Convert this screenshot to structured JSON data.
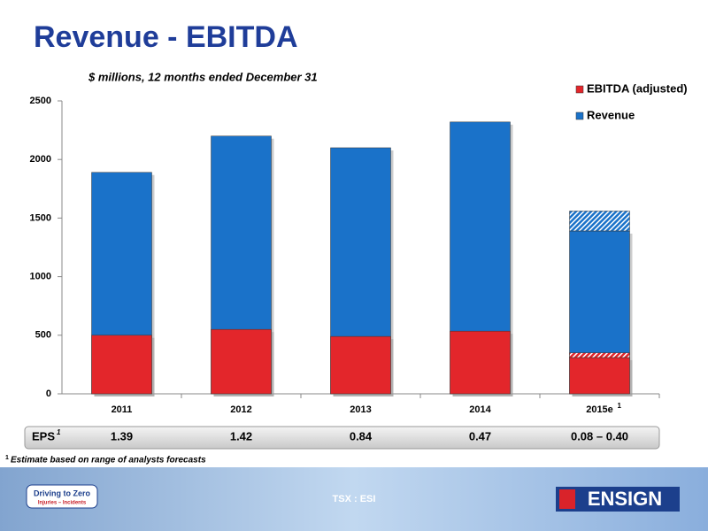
{
  "chart_data": {
    "type": "bar",
    "title": "Revenue - EBITDA",
    "subtitle": "$ millions, 12 months ended December 31",
    "categories": [
      "2011",
      "2012",
      "2013",
      "2014",
      "2015e"
    ],
    "category_markers": [
      null,
      null,
      null,
      null,
      "1"
    ],
    "series": [
      {
        "name": "EBITDA (adjusted)",
        "color": "#e3262b",
        "values": [
          500,
          550,
          490,
          535,
          310
        ],
        "values_high": [
          null,
          null,
          null,
          null,
          350
        ]
      },
      {
        "name": "Revenue",
        "color": "#1a72c9",
        "values": [
          1890,
          2200,
          2100,
          2320,
          1390
        ],
        "values_high": [
          null,
          null,
          null,
          null,
          1560
        ]
      }
    ],
    "ylim": [
      0,
      2500
    ],
    "yticks": [
      0,
      500,
      1000,
      1500,
      2000,
      2500
    ],
    "legend": "top-right",
    "eps_row": {
      "label": "EPS",
      "marker": "1",
      "values": [
        "1.39",
        "1.42",
        "0.84",
        "0.47",
        "0.08 – 0.40"
      ]
    },
    "footnote": {
      "marker": "1",
      "text": "Estimate based on range of analysts forecasts"
    }
  },
  "footer": {
    "left_logo": "Driving to Zero",
    "left_logo_sub": "Injuries – Incidents",
    "ticker": "TSX : ESI",
    "right_logo": "ENSIGN"
  }
}
